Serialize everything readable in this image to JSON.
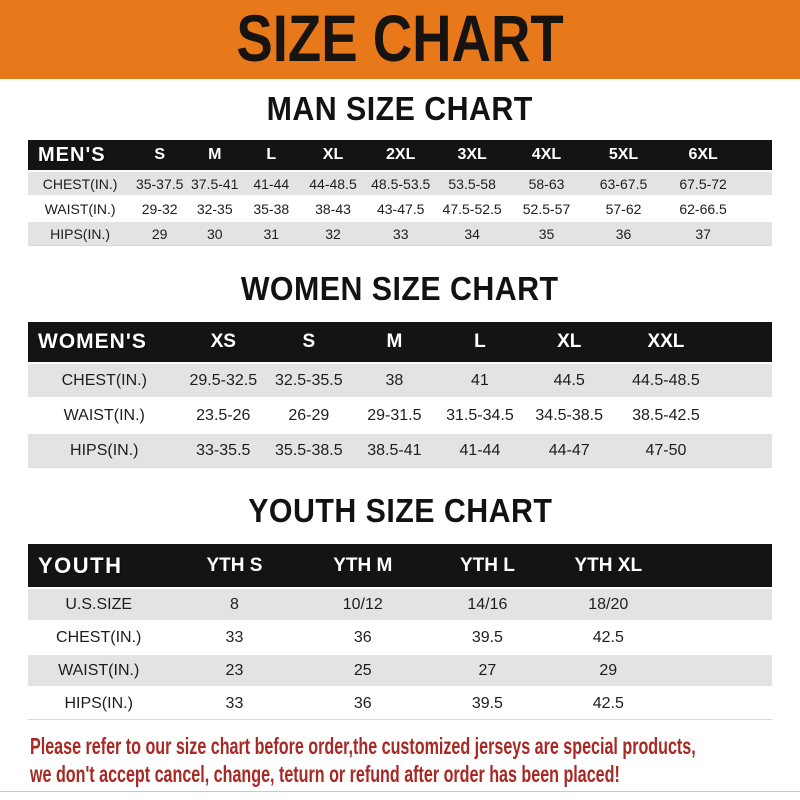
{
  "banner": {
    "title": "SIZE CHART"
  },
  "colors": {
    "banner_bg": "#E8791B",
    "table_header_bg": "#141414",
    "row_stripe": "#E3E3E3",
    "disclaimer_text": "#A82823"
  },
  "sections": [
    {
      "heading": "MAN SIZE CHART",
      "table": {
        "header_label": "MEN'S",
        "columns": [
          "S",
          "M",
          "L",
          "XL",
          "2XL",
          "3XL",
          "4XL",
          "5XL",
          "6XL"
        ],
        "rows": [
          {
            "label": "CHEST(IN.)",
            "values": [
              "35-37.5",
              "37.5-41",
              "41-44",
              "44-48.5",
              "48.5-53.5",
              "53.5-58",
              "58-63",
              "63-67.5",
              "67.5-72"
            ]
          },
          {
            "label": "WAIST(IN.)",
            "values": [
              "29-32",
              "32-35",
              "35-38",
              "38-43",
              "43-47.5",
              "47.5-52.5",
              "52.5-57",
              "57-62",
              "62-66.5"
            ]
          },
          {
            "label": "HIPS(IN.)",
            "values": [
              "29",
              "30",
              "31",
              "32",
              "33",
              "34",
              "35",
              "36",
              "37"
            ]
          }
        ]
      }
    },
    {
      "heading": "WOMEN SIZE CHART",
      "table": {
        "header_label": "WOMEN'S",
        "columns": [
          "XS",
          "S",
          "M",
          "L",
          "XL",
          "XXL"
        ],
        "rows": [
          {
            "label": "CHEST(IN.)",
            "values": [
              "29.5-32.5",
              "32.5-35.5",
              "38",
              "41",
              "44.5",
              "44.5-48.5"
            ]
          },
          {
            "label": "WAIST(IN.)",
            "values": [
              "23.5-26",
              "26-29",
              "29-31.5",
              "31.5-34.5",
              "34.5-38.5",
              "38.5-42.5"
            ]
          },
          {
            "label": "HIPS(IN.)",
            "values": [
              "33-35.5",
              "35.5-38.5",
              "38.5-41",
              "41-44",
              "44-47",
              "47-50"
            ]
          }
        ]
      }
    },
    {
      "heading": "YOUTH SIZE CHART",
      "table": {
        "header_label": "YOUTH",
        "columns": [
          "YTH S",
          "YTH M",
          "YTH L",
          "YTH XL"
        ],
        "rows": [
          {
            "label": "U.S.SIZE",
            "values": [
              "8",
              "10/12",
              "14/16",
              "18/20"
            ]
          },
          {
            "label": "CHEST(IN.)",
            "values": [
              "33",
              "36",
              "39.5",
              "42.5"
            ]
          },
          {
            "label": "WAIST(IN.)",
            "values": [
              "23",
              "25",
              "27",
              "29"
            ]
          },
          {
            "label": "HIPS(IN.)",
            "values": [
              "33",
              "36",
              "39.5",
              "42.5"
            ]
          }
        ]
      }
    }
  ],
  "disclaimer": {
    "line1": "Please refer to our size chart before order,the customized jerseys are special products,",
    "line2": "we don't accept cancel, change, teturn or refund after order has been placed!"
  }
}
